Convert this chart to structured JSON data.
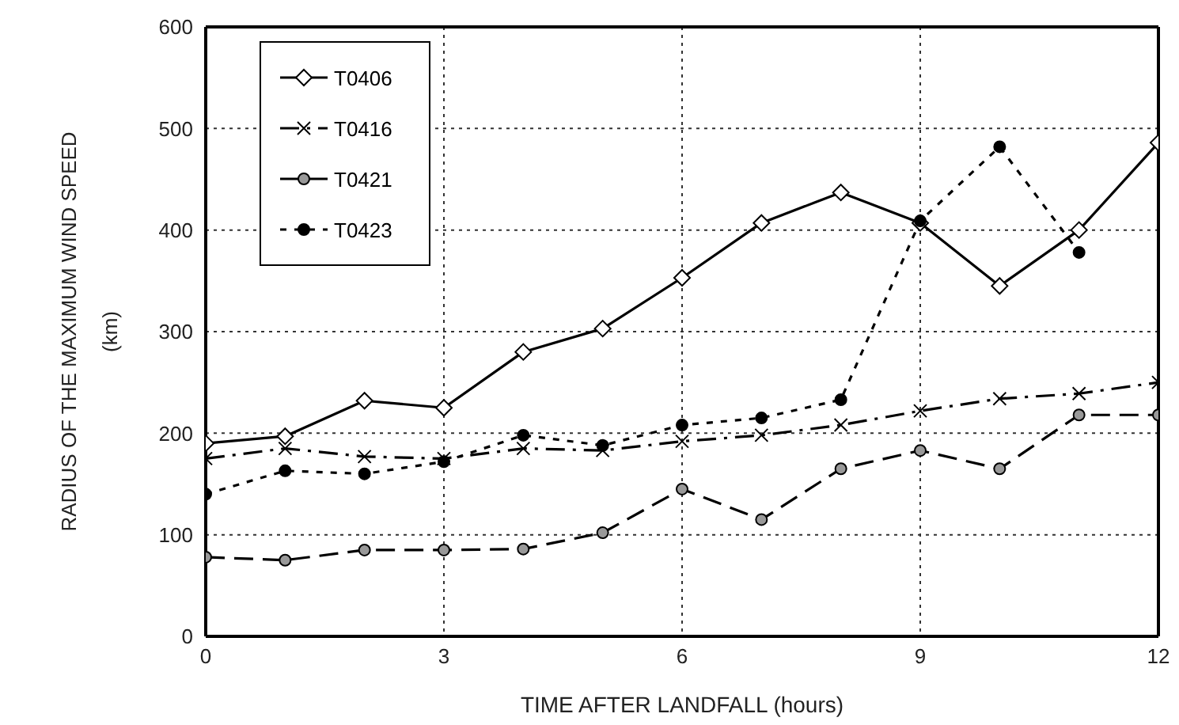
{
  "chart_data": {
    "type": "line",
    "xlabel": "TIME AFTER LANDFALL (hours)",
    "ylabel": "RADIUS OF THE MAXIMUM WIND SPEED\n(km)",
    "x": [
      0,
      1,
      2,
      3,
      4,
      5,
      6,
      7,
      8,
      9,
      10,
      11,
      12
    ],
    "series": [
      {
        "name": "T0406",
        "color": "#000000",
        "marker": "diamond",
        "line_style": "solid",
        "values": [
          190,
          197,
          232,
          225,
          280,
          303,
          353,
          407,
          437,
          407,
          345,
          400,
          486
        ]
      },
      {
        "name": "T0416",
        "color": "#000000",
        "marker": "cross",
        "line_style": "dashdot",
        "values": [
          175,
          185,
          177,
          175,
          185,
          183,
          192,
          198,
          208,
          222,
          234,
          239,
          250
        ]
      },
      {
        "name": "T0421",
        "color": "#000000",
        "marker": "circle",
        "line_style": "dashed",
        "values": [
          78,
          75,
          85,
          85,
          86,
          102,
          145,
          115,
          165,
          183,
          165,
          218,
          218
        ]
      },
      {
        "name": "T0423",
        "color": "#000000",
        "marker": "circle_filled",
        "line_style": "dotted",
        "values": [
          140,
          163,
          160,
          172,
          198,
          188,
          208,
          215,
          233,
          409,
          482,
          378,
          null
        ]
      }
    ],
    "xlim": [
      0,
      12
    ],
    "xticks": [
      0,
      3,
      6,
      9,
      12
    ],
    "ylim": [
      0,
      600
    ],
    "yticks": [
      0,
      100,
      200,
      300,
      400,
      500,
      600
    ],
    "grid": true,
    "legend": "top left"
  }
}
